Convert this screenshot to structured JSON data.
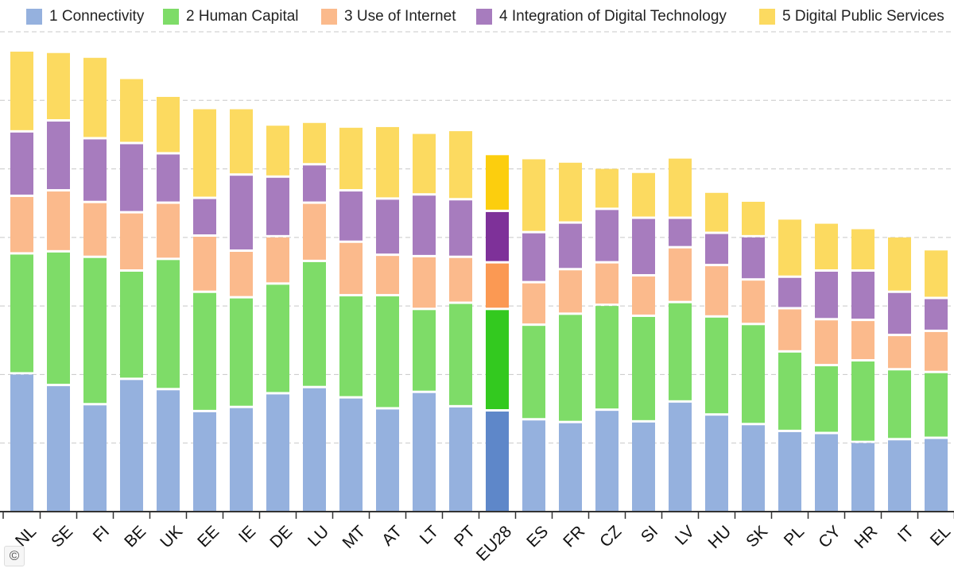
{
  "chart_data": {
    "type": "bar",
    "stacked": true,
    "orientation": "vertical",
    "categories": [
      "NL",
      "SE",
      "FI",
      "BE",
      "UK",
      "EE",
      "IE",
      "DE",
      "LU",
      "MT",
      "AT",
      "LT",
      "PT",
      "EU28",
      "ES",
      "FR",
      "CZ",
      "SI",
      "LV",
      "HU",
      "SK",
      "PL",
      "CY",
      "HR",
      "IT",
      "EL"
    ],
    "highlight_category": "EU28",
    "series": [
      {
        "name": "1 Connectivity",
        "color": "#95b1de",
        "highlight_color": "#5e87c9",
        "values": [
          0.2,
          0.183,
          0.155,
          0.192,
          0.177,
          0.145,
          0.151,
          0.171,
          0.18,
          0.165,
          0.149,
          0.173,
          0.152,
          0.146,
          0.133,
          0.129,
          0.147,
          0.13,
          0.159,
          0.14,
          0.126,
          0.116,
          0.113,
          0.1,
          0.104,
          0.106
        ]
      },
      {
        "name": "2 Human Capital",
        "color": "#7edc68",
        "highlight_color": "#33c91f",
        "values": [
          0.175,
          0.195,
          0.215,
          0.158,
          0.19,
          0.174,
          0.16,
          0.16,
          0.184,
          0.149,
          0.165,
          0.121,
          0.151,
          0.148,
          0.138,
          0.158,
          0.153,
          0.154,
          0.145,
          0.143,
          0.146,
          0.116,
          0.099,
          0.119,
          0.102,
          0.096
        ]
      },
      {
        "name": "3 Use of Internet",
        "color": "#fbba8c",
        "highlight_color": "#fb9953",
        "values": [
          0.084,
          0.089,
          0.08,
          0.085,
          0.082,
          0.082,
          0.068,
          0.069,
          0.085,
          0.078,
          0.059,
          0.077,
          0.067,
          0.068,
          0.062,
          0.065,
          0.062,
          0.059,
          0.08,
          0.075,
          0.065,
          0.063,
          0.067,
          0.059,
          0.05,
          0.06
        ]
      },
      {
        "name": "4 Integration of Digital Technology",
        "color": "#a77cbe",
        "highlight_color": "#7e3199",
        "values": [
          0.094,
          0.102,
          0.093,
          0.101,
          0.072,
          0.055,
          0.111,
          0.087,
          0.056,
          0.075,
          0.082,
          0.09,
          0.084,
          0.075,
          0.073,
          0.068,
          0.078,
          0.084,
          0.043,
          0.047,
          0.063,
          0.046,
          0.071,
          0.072,
          0.063,
          0.048
        ]
      },
      {
        "name": "5 Digital Public Services",
        "color": "#fcda60",
        "highlight_color": "#fcce0e",
        "values": [
          0.118,
          0.1,
          0.119,
          0.095,
          0.084,
          0.131,
          0.097,
          0.076,
          0.062,
          0.093,
          0.106,
          0.09,
          0.101,
          0.083,
          0.108,
          0.089,
          0.06,
          0.067,
          0.088,
          0.06,
          0.052,
          0.085,
          0.07,
          0.062,
          0.081,
          0.071
        ]
      }
    ],
    "ylim": [
      0,
      0.7
    ],
    "grid": true,
    "legend_position": "top"
  },
  "copyright_symbol": "©"
}
